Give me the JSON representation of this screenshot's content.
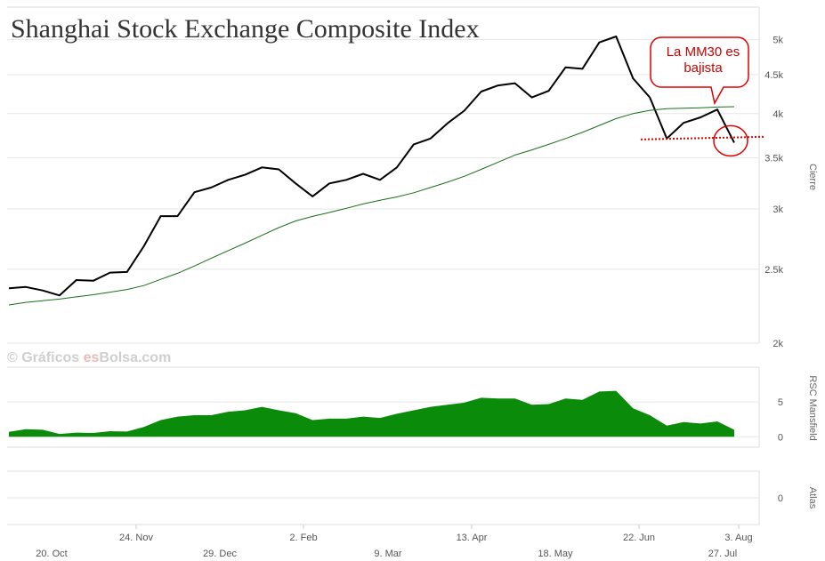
{
  "chart_data": {
    "type": "line",
    "title": "Shanghai Stock Exchange Composite Index",
    "watermark": {
      "prefix": "© Gráficos ",
      "brand": "es",
      "suffix": "Bolsa.com"
    },
    "colors": {
      "price": "#000000",
      "ma": "#1a6e1a",
      "rsc_fill": "#0a8c0a",
      "annotation": "#e00000",
      "grid": "#e6e6e6"
    },
    "x_labels_top": [
      "24. Nov",
      "2. Feb",
      "13. Apr",
      "22. Jun",
      "3. Aug"
    ],
    "x_labels_bottom": [
      "20. Oct",
      "29. Dec",
      "9. Mar",
      "18. May",
      "27. Jul"
    ],
    "price_panel": {
      "ylabel": "Cierre",
      "scale": "log",
      "ylim": [
        2000,
        5400
      ],
      "yticks": [
        {
          "v": 2000,
          "label": "2k"
        },
        {
          "v": 2500,
          "label": "2.5k"
        },
        {
          "v": 3000,
          "label": "3k"
        },
        {
          "v": 3500,
          "label": "3.5k"
        },
        {
          "v": 4000,
          "label": "4k"
        },
        {
          "v": 4500,
          "label": "4.5k"
        },
        {
          "v": 5000,
          "label": "5k"
        }
      ],
      "series": [
        {
          "key": "price",
          "values": [
            2360,
            2370,
            2345,
            2310,
            2420,
            2415,
            2475,
            2480,
            2680,
            2935,
            2935,
            3155,
            3200,
            3275,
            3325,
            3400,
            3380,
            3240,
            3115,
            3240,
            3275,
            3335,
            3275,
            3400,
            3645,
            3710,
            3885,
            4035,
            4275,
            4355,
            4385,
            4200,
            4285,
            4600,
            4580,
            4960,
            5050,
            4450,
            4200,
            3710,
            3890,
            3955,
            4050,
            3665
          ]
        },
        {
          "key": "ma",
          "values": [
            2245,
            2262,
            2274,
            2285,
            2300,
            2315,
            2333,
            2352,
            2380,
            2425,
            2470,
            2525,
            2585,
            2645,
            2705,
            2770,
            2835,
            2893,
            2933,
            2968,
            3005,
            3045,
            3080,
            3110,
            3150,
            3200,
            3252,
            3310,
            3380,
            3455,
            3530,
            3585,
            3645,
            3710,
            3780,
            3860,
            3940,
            4000,
            4040,
            4060,
            4065,
            4070,
            4080,
            4085
          ]
        }
      ],
      "support_level": 3700,
      "callout": {
        "line1": "La MM30 es",
        "line2": "bajista"
      }
    },
    "rsc_panel": {
      "ylabel": "RSC Mansfield",
      "ylim": [
        -1.5,
        10
      ],
      "yticks": [
        {
          "v": 0,
          "label": "0"
        },
        {
          "v": 5,
          "label": "5"
        }
      ],
      "values": [
        0.7,
        1.1,
        1.0,
        0.4,
        0.6,
        0.55,
        0.8,
        0.75,
        1.4,
        2.4,
        2.9,
        3.1,
        3.1,
        3.6,
        3.8,
        4.3,
        3.8,
        3.4,
        2.4,
        2.6,
        2.6,
        2.9,
        2.7,
        3.3,
        3.8,
        4.3,
        4.6,
        4.9,
        5.6,
        5.5,
        5.5,
        4.6,
        4.7,
        5.5,
        5.3,
        6.5,
        6.6,
        4.1,
        3.1,
        1.6,
        2.1,
        1.9,
        2.2,
        1.0
      ]
    },
    "atlas_panel": {
      "ylabel": "Atlas",
      "yticks": [
        {
          "v": 0,
          "label": "0"
        }
      ]
    }
  }
}
